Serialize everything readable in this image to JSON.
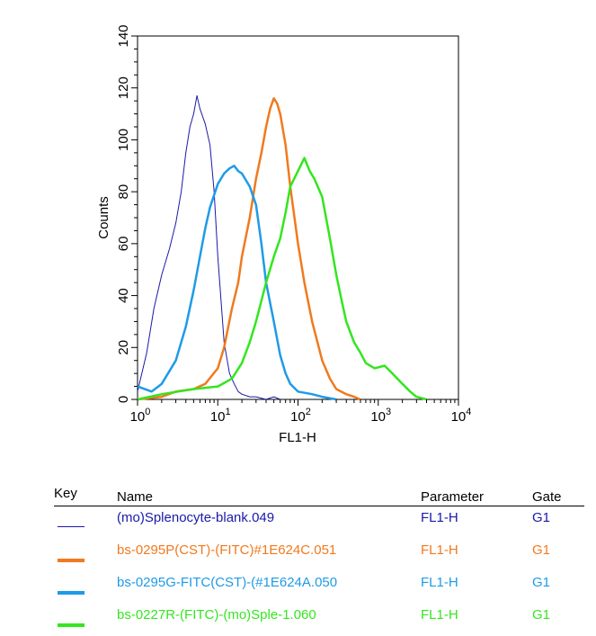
{
  "chart_data": {
    "type": "line",
    "xlabel": "FL1-H",
    "ylabel": "Counts",
    "x_scale": "log",
    "xlim": [
      1,
      10000
    ],
    "ylim": [
      0,
      140
    ],
    "y_ticks": [
      0,
      20,
      40,
      60,
      80,
      100,
      120,
      140
    ],
    "x_ticks": [
      {
        "base": "10",
        "exp": "0"
      },
      {
        "base": "10",
        "exp": "1"
      },
      {
        "base": "10",
        "exp": "2"
      },
      {
        "base": "10",
        "exp": "3"
      },
      {
        "base": "10",
        "exp": "4"
      }
    ],
    "series": [
      {
        "name": "(mo)Splenocyte-blank.049",
        "parameter": "FL1-H",
        "gate": "G1",
        "color": "#1a1aa8",
        "width": 1,
        "x": [
          1,
          1.3,
          1.6,
          2,
          2.5,
          3,
          3.5,
          4,
          4.5,
          5,
          5.5,
          6,
          7,
          8,
          9,
          10,
          11,
          12,
          14,
          16,
          18,
          20,
          25,
          30,
          40,
          50,
          60
        ],
        "y": [
          3,
          18,
          35,
          48,
          58,
          68,
          80,
          95,
          105,
          110,
          117,
          112,
          106,
          98,
          80,
          55,
          38,
          22,
          10,
          6,
          3,
          2,
          1,
          1,
          0,
          1,
          0
        ]
      },
      {
        "name": "bs-0295P(CST)-(FITC)#1E624C.051",
        "parameter": "FL1-H",
        "gate": "G1",
        "color": "#f07a1e",
        "width": 2.5,
        "x": [
          1,
          2,
          3,
          5,
          7,
          10,
          12,
          15,
          18,
          20,
          25,
          30,
          35,
          40,
          45,
          50,
          55,
          60,
          70,
          80,
          100,
          120,
          150,
          200,
          250,
          300,
          400,
          500,
          600
        ],
        "y": [
          0,
          1,
          3,
          4,
          6,
          12,
          20,
          35,
          45,
          55,
          70,
          85,
          95,
          105,
          112,
          116,
          114,
          110,
          98,
          82,
          60,
          45,
          30,
          15,
          8,
          4,
          2,
          1,
          0
        ]
      },
      {
        "name": "bs-0295G-FITC(CST)-(#1E624A.050",
        "parameter": "FL1-H",
        "gate": "G1",
        "color": "#1e9be6",
        "width": 2.5,
        "x": [
          1,
          1.5,
          2,
          3,
          4,
          5,
          6,
          7,
          8,
          10,
          12,
          14,
          16,
          18,
          20,
          25,
          30,
          35,
          40,
          50,
          60,
          70,
          80,
          100,
          150,
          200,
          300
        ],
        "y": [
          5,
          3,
          6,
          15,
          28,
          42,
          55,
          66,
          74,
          83,
          87,
          89,
          90,
          88,
          87,
          82,
          75,
          60,
          45,
          30,
          17,
          10,
          6,
          3,
          2,
          1,
          0
        ]
      },
      {
        "name": "bs-0227R-(FITC)-(mo)Sple-1.060",
        "parameter": "FL1-H",
        "gate": "G1",
        "color": "#33e61e",
        "width": 2.5,
        "x": [
          1,
          2,
          5,
          10,
          15,
          20,
          25,
          30,
          40,
          50,
          60,
          70,
          80,
          100,
          120,
          140,
          160,
          200,
          250,
          300,
          350,
          400,
          500,
          600,
          700,
          900,
          1200,
          1500,
          2000,
          2500,
          3000,
          4000
        ],
        "y": [
          0,
          2,
          4,
          5,
          8,
          14,
          22,
          30,
          45,
          55,
          62,
          72,
          82,
          88,
          93,
          88,
          85,
          78,
          62,
          48,
          38,
          30,
          22,
          18,
          14,
          12,
          13,
          10,
          6,
          3,
          1,
          0
        ]
      }
    ]
  },
  "legend": {
    "headers": {
      "key": "Key",
      "name": "Name",
      "parameter": "Parameter",
      "gate": "Gate"
    },
    "rows": [
      {
        "name": "(mo)Splenocyte-blank.049",
        "parameter": "FL1-H",
        "gate": "G1",
        "color": "#1a1aa8"
      },
      {
        "name": "bs-0295P(CST)-(FITC)#1E624C.051",
        "parameter": "FL1-H",
        "gate": "G1",
        "color": "#f07a1e"
      },
      {
        "name": "bs-0295G-FITC(CST)-(#1E624A.050",
        "parameter": "FL1-H",
        "gate": "G1",
        "color": "#1e9be6"
      },
      {
        "name": "bs-0227R-(FITC)-(mo)Sple-1.060",
        "parameter": "FL1-H",
        "gate": "G1",
        "color": "#33e61e"
      }
    ]
  }
}
